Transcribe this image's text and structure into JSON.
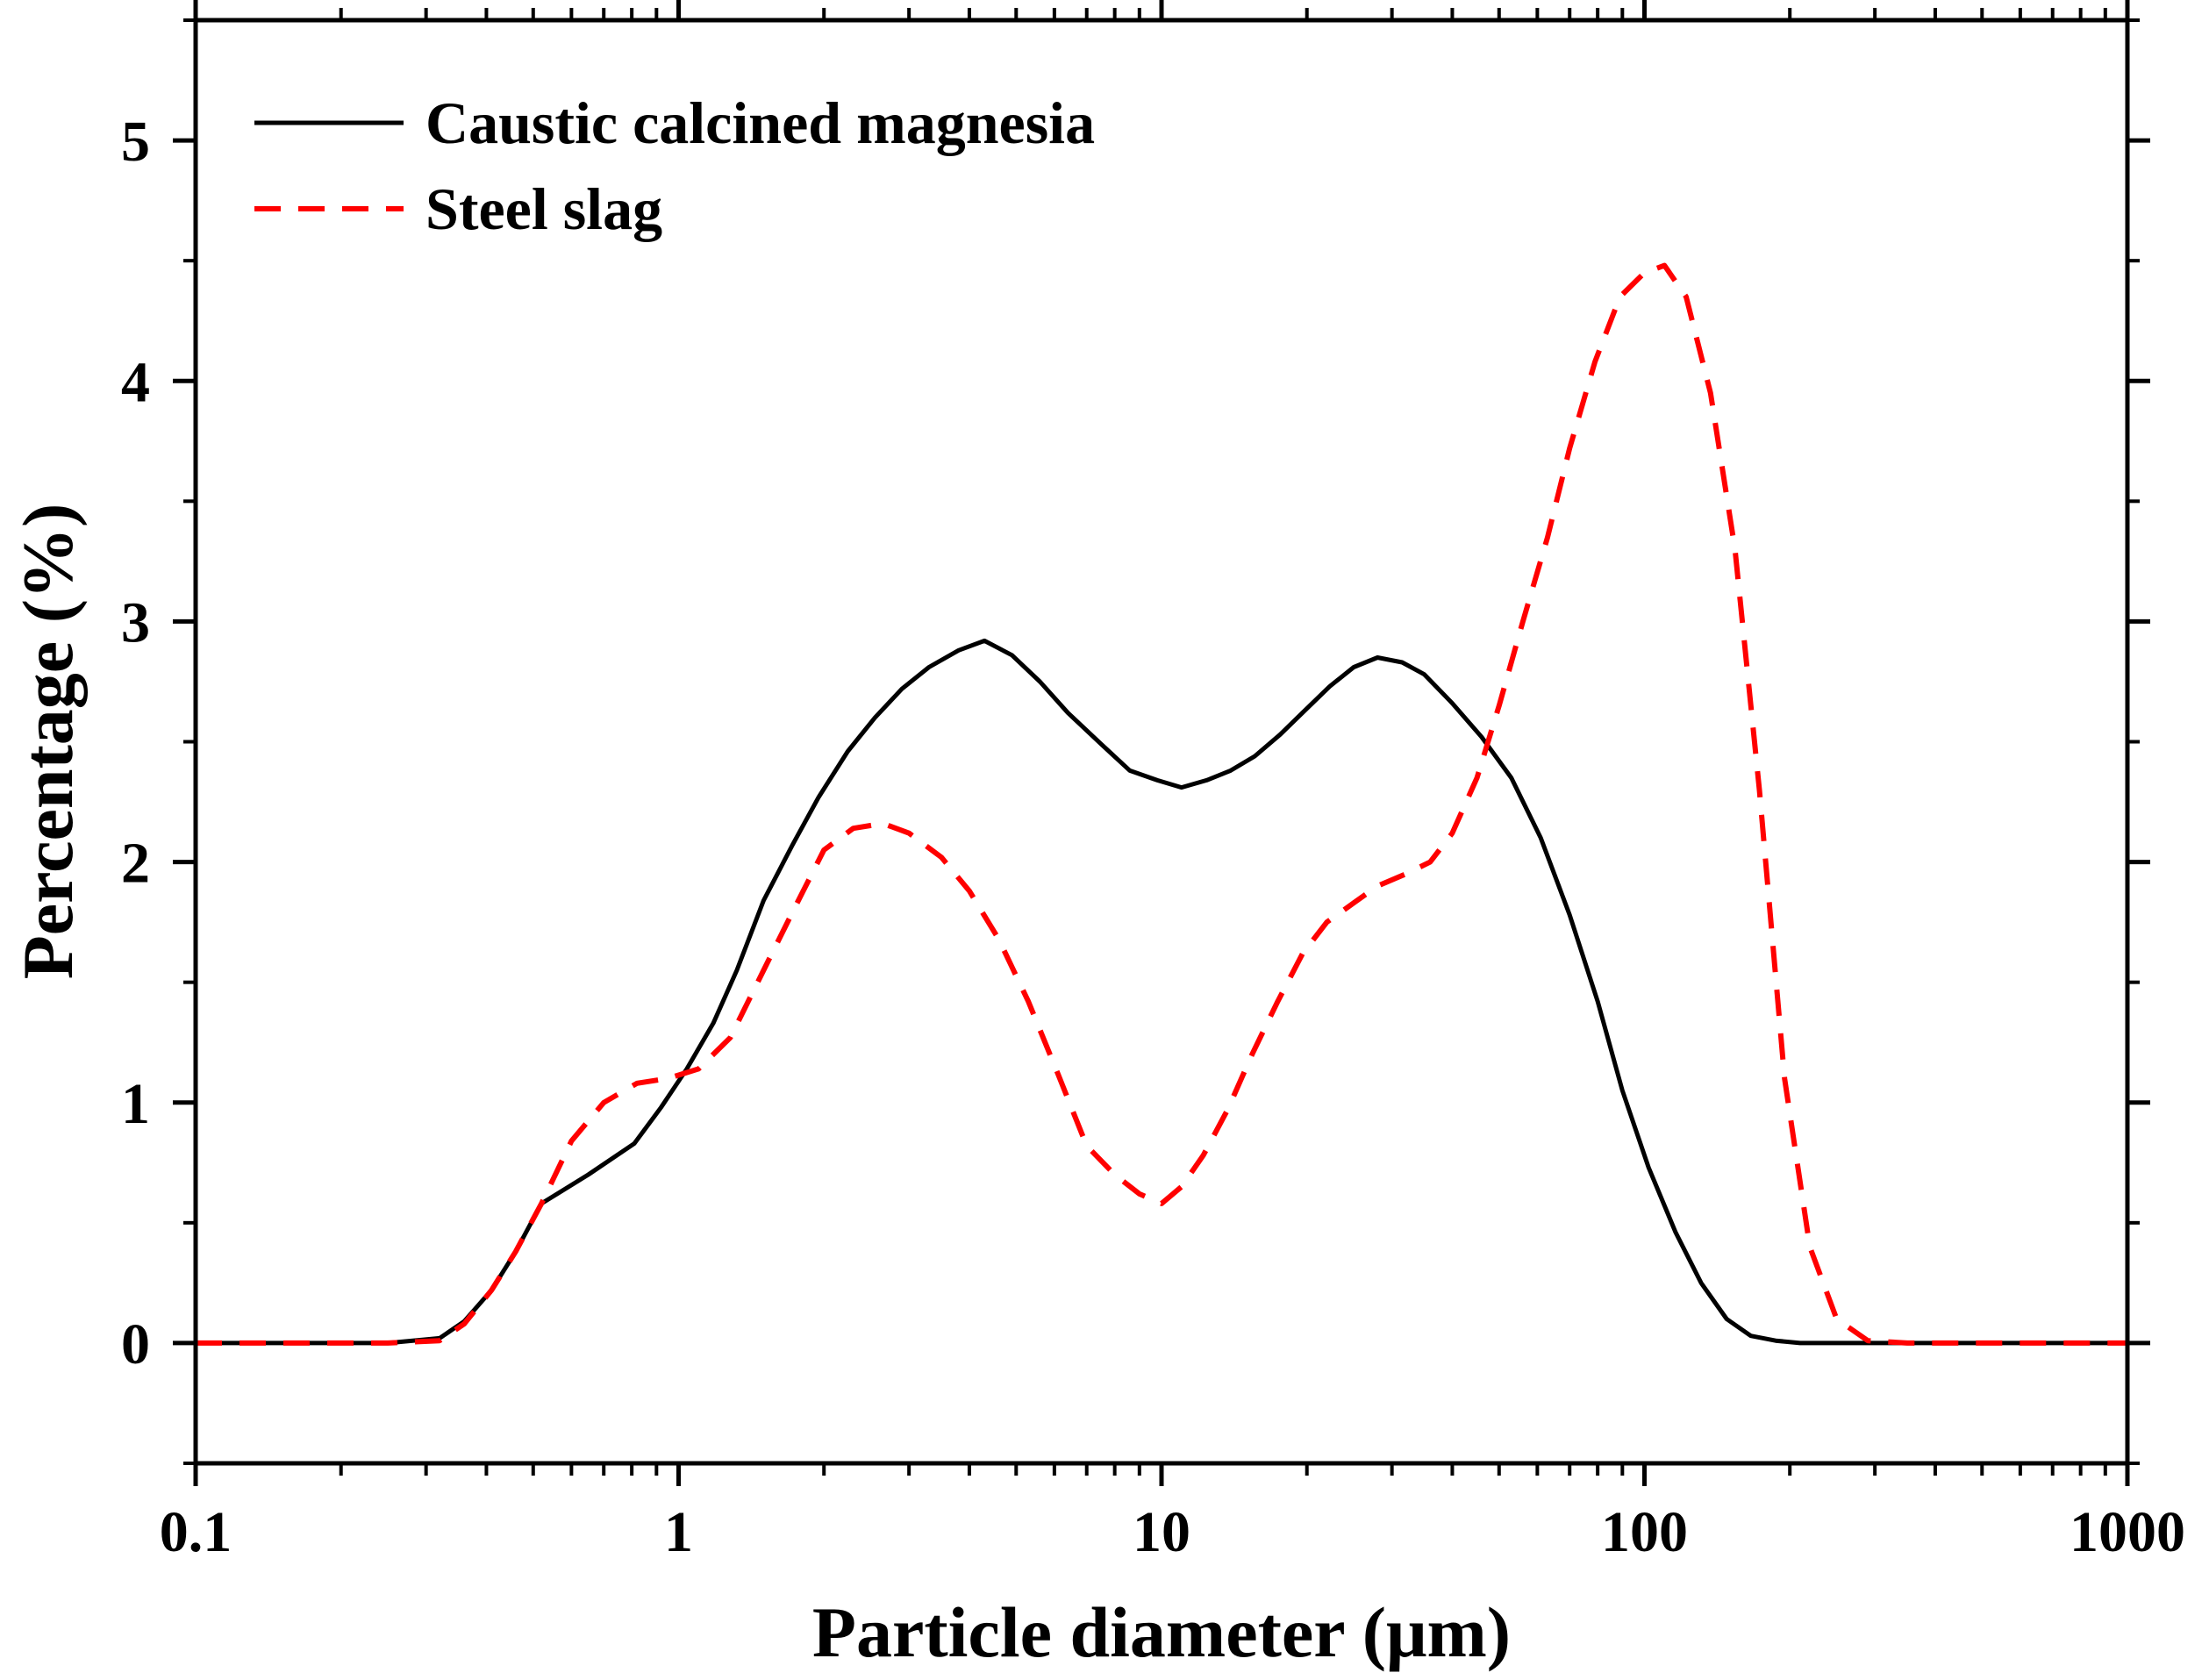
{
  "chart_data": {
    "type": "line",
    "title": "",
    "xlabel": "Particle diameter (μm)",
    "ylabel": "Percentage (%)",
    "xscale": "log",
    "xlim": [
      0.1,
      1000
    ],
    "ylim": [
      -0.5,
      5.5
    ],
    "x_ticks": [
      0.1,
      1,
      10,
      100,
      1000
    ],
    "x_tick_labels": [
      "0.1",
      "1",
      "10",
      "100",
      "1000"
    ],
    "y_ticks": [
      0,
      1,
      2,
      3,
      4,
      5
    ],
    "y_tick_labels": [
      "0",
      "1",
      "2",
      "3",
      "4",
      "5"
    ],
    "grid": false,
    "legend_position": "top-left",
    "series": [
      {
        "name": "Caustic calcined magnesia",
        "color": "#000000",
        "style": "solid",
        "x": [
          0.1,
          0.25,
          0.32,
          0.36,
          0.41,
          0.46,
          0.52,
          0.65,
          0.81,
          0.92,
          1.04,
          1.18,
          1.32,
          1.5,
          1.72,
          1.95,
          2.24,
          2.55,
          2.9,
          3.3,
          3.8,
          4.3,
          4.9,
          5.6,
          6.4,
          7.5,
          8.6,
          9.8,
          11.0,
          12.4,
          13.9,
          15.6,
          17.6,
          19.8,
          22.3,
          25.0,
          28.0,
          31.5,
          35.0,
          40.0,
          46.0,
          53.0,
          61.0,
          70.0,
          80.0,
          90.0,
          102,
          116,
          131,
          148,
          166,
          187,
          210,
          240,
          1000
        ],
        "y": [
          0,
          0,
          0.02,
          0.09,
          0.22,
          0.38,
          0.58,
          0.7,
          0.83,
          0.98,
          1.14,
          1.33,
          1.55,
          1.84,
          2.07,
          2.27,
          2.46,
          2.6,
          2.72,
          2.81,
          2.88,
          2.92,
          2.86,
          2.75,
          2.62,
          2.49,
          2.38,
          2.34,
          2.31,
          2.34,
          2.38,
          2.44,
          2.53,
          2.63,
          2.73,
          2.81,
          2.85,
          2.83,
          2.78,
          2.66,
          2.52,
          2.35,
          2.1,
          1.78,
          1.42,
          1.05,
          0.73,
          0.46,
          0.25,
          0.1,
          0.03,
          0.01,
          0.0,
          0.0,
          0.0
        ],
        "values": [
          0,
          0,
          0.02,
          0.09,
          0.22,
          0.38,
          0.58,
          0.7,
          0.83,
          0.98,
          1.14,
          1.33,
          1.55,
          1.84,
          2.07,
          2.27,
          2.46,
          2.6,
          2.72,
          2.81,
          2.88,
          2.92,
          2.86,
          2.75,
          2.62,
          2.49,
          2.38,
          2.34,
          2.31,
          2.34,
          2.38,
          2.44,
          2.53,
          2.63,
          2.73,
          2.81,
          2.85,
          2.83,
          2.78,
          2.66,
          2.52,
          2.35,
          2.1,
          1.78,
          1.42,
          1.05,
          0.73,
          0.46,
          0.25,
          0.1,
          0.03,
          0.01,
          0.0,
          0.0,
          0.0
        ]
      },
      {
        "name": "Steel slag",
        "color": "#ff0000",
        "style": "dashed",
        "x": [
          0.1,
          0.25,
          0.32,
          0.36,
          0.41,
          0.46,
          0.52,
          0.6,
          0.7,
          0.82,
          0.95,
          1.1,
          1.28,
          1.5,
          1.75,
          2.0,
          2.3,
          2.65,
          3.0,
          3.5,
          4.0,
          4.6,
          5.3,
          6.1,
          7.0,
          8.0,
          9.0,
          10.0,
          11.0,
          12.2,
          13.7,
          15.4,
          17.4,
          19.6,
          22.0,
          25.0,
          28.0,
          32.0,
          36.0,
          40.0,
          45.0,
          50.0,
          56.0,
          63.0,
          70.0,
          79.0,
          89.0,
          100.0,
          110.0,
          122.0,
          137.0,
          154.0,
          173.0,
          195.0,
          220.0,
          250.0,
          290.0,
          350.0,
          1000
        ],
        "y": [
          0,
          0,
          0.01,
          0.08,
          0.22,
          0.38,
          0.58,
          0.84,
          1.0,
          1.08,
          1.1,
          1.14,
          1.27,
          1.55,
          1.82,
          2.05,
          2.14,
          2.16,
          2.12,
          2.02,
          1.88,
          1.68,
          1.42,
          1.12,
          0.82,
          0.7,
          0.62,
          0.58,
          0.65,
          0.78,
          0.97,
          1.2,
          1.42,
          1.62,
          1.75,
          1.83,
          1.9,
          1.95,
          2.0,
          2.12,
          2.35,
          2.65,
          3.0,
          3.35,
          3.72,
          4.08,
          4.35,
          4.45,
          4.48,
          4.35,
          3.95,
          3.3,
          2.3,
          1.1,
          0.4,
          0.1,
          0.01,
          0.0,
          0.0
        ],
        "values": [
          0,
          0,
          0.01,
          0.08,
          0.22,
          0.38,
          0.58,
          0.84,
          1.0,
          1.08,
          1.1,
          1.14,
          1.27,
          1.55,
          1.82,
          2.05,
          2.14,
          2.16,
          2.12,
          2.02,
          1.88,
          1.68,
          1.42,
          1.12,
          0.82,
          0.7,
          0.62,
          0.58,
          0.65,
          0.78,
          0.97,
          1.2,
          1.42,
          1.62,
          1.75,
          1.83,
          1.9,
          1.95,
          2.0,
          2.12,
          2.35,
          2.65,
          3.0,
          3.35,
          3.72,
          4.08,
          4.35,
          4.45,
          4.48,
          4.35,
          3.95,
          3.3,
          2.3,
          1.1,
          0.4,
          0.1,
          0.01,
          0.0,
          0.0
        ]
      }
    ]
  }
}
